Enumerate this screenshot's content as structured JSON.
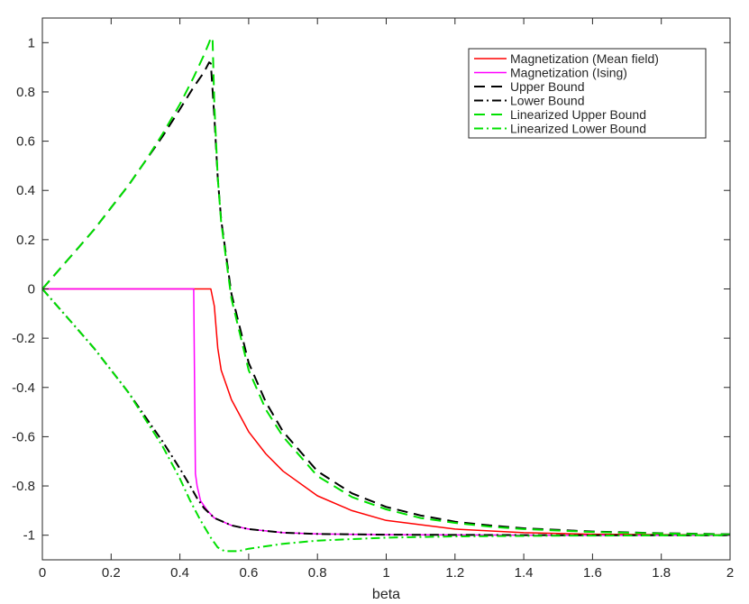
{
  "chart_data": {
    "type": "line",
    "xlabel": "beta",
    "ylabel": "",
    "xlim": [
      0,
      2
    ],
    "ylim": [
      -1.1,
      1.1
    ],
    "xticks": [
      "0",
      "0.2",
      "0.4",
      "0.6",
      "0.8",
      "1",
      "1.2",
      "1.4",
      "1.6",
      "1.8",
      "2"
    ],
    "yticks": [
      "-1",
      "-0.8",
      "-0.6",
      "-0.4",
      "-0.2",
      "0",
      "0.2",
      "0.4",
      "0.6",
      "0.8",
      "1"
    ],
    "grid": false,
    "legend_position": "top-right",
    "series": [
      {
        "name": "Magnetization (Mean field)",
        "color": "#ff0000",
        "dash": "solid",
        "points": [
          [
            0,
            0
          ],
          [
            0.49,
            0
          ],
          [
            0.5,
            -0.07
          ],
          [
            0.51,
            -0.24
          ],
          [
            0.52,
            -0.33
          ],
          [
            0.55,
            -0.45
          ],
          [
            0.6,
            -0.58
          ],
          [
            0.65,
            -0.67
          ],
          [
            0.7,
            -0.74
          ],
          [
            0.8,
            -0.84
          ],
          [
            0.9,
            -0.9
          ],
          [
            1.0,
            -0.94
          ],
          [
            1.2,
            -0.975
          ],
          [
            1.4,
            -0.99
          ],
          [
            1.6,
            -0.996
          ],
          [
            1.8,
            -0.998
          ],
          [
            2.0,
            -0.999
          ]
        ]
      },
      {
        "name": "Magnetization (Ising)",
        "color": "#ff00ff",
        "dash": "solid",
        "points": [
          [
            0,
            0
          ],
          [
            0.44,
            0
          ],
          [
            0.445,
            -0.75
          ],
          [
            0.45,
            -0.8
          ],
          [
            0.46,
            -0.86
          ],
          [
            0.48,
            -0.9
          ],
          [
            0.5,
            -0.93
          ],
          [
            0.55,
            -0.96
          ],
          [
            0.6,
            -0.975
          ],
          [
            0.7,
            -0.99
          ],
          [
            0.8,
            -0.995
          ],
          [
            1.0,
            -0.998
          ],
          [
            1.5,
            -1.0
          ],
          [
            2.0,
            -1.0
          ]
        ]
      },
      {
        "name": "Upper Bound",
        "color": "#000000",
        "dash": "long-dash",
        "points": [
          [
            0,
            0
          ],
          [
            0.05,
            0.08
          ],
          [
            0.1,
            0.16
          ],
          [
            0.15,
            0.24
          ],
          [
            0.2,
            0.33
          ],
          [
            0.25,
            0.42
          ],
          [
            0.3,
            0.52
          ],
          [
            0.35,
            0.62
          ],
          [
            0.4,
            0.73
          ],
          [
            0.44,
            0.82
          ],
          [
            0.47,
            0.88
          ],
          [
            0.485,
            0.92
          ],
          [
            0.49,
            0.915
          ],
          [
            0.5,
            0.7
          ],
          [
            0.51,
            0.45
          ],
          [
            0.52,
            0.28
          ],
          [
            0.55,
            -0.02
          ],
          [
            0.6,
            -0.3
          ],
          [
            0.65,
            -0.46
          ],
          [
            0.7,
            -0.58
          ],
          [
            0.8,
            -0.74
          ],
          [
            0.9,
            -0.83
          ],
          [
            1.0,
            -0.885
          ],
          [
            1.1,
            -0.92
          ],
          [
            1.2,
            -0.945
          ],
          [
            1.3,
            -0.96
          ],
          [
            1.4,
            -0.972
          ],
          [
            1.6,
            -0.985
          ],
          [
            1.8,
            -0.992
          ],
          [
            2.0,
            -0.996
          ]
        ]
      },
      {
        "name": "Lower Bound",
        "color": "#000000",
        "dash": "dash-dot",
        "points": [
          [
            0,
            0
          ],
          [
            0.05,
            -0.08
          ],
          [
            0.1,
            -0.16
          ],
          [
            0.15,
            -0.24
          ],
          [
            0.2,
            -0.33
          ],
          [
            0.25,
            -0.42
          ],
          [
            0.3,
            -0.52
          ],
          [
            0.35,
            -0.62
          ],
          [
            0.4,
            -0.73
          ],
          [
            0.43,
            -0.8
          ],
          [
            0.45,
            -0.85
          ],
          [
            0.47,
            -0.89
          ],
          [
            0.5,
            -0.93
          ],
          [
            0.55,
            -0.96
          ],
          [
            0.6,
            -0.975
          ],
          [
            0.7,
            -0.99
          ],
          [
            0.8,
            -0.995
          ],
          [
            1.0,
            -0.998
          ],
          [
            1.5,
            -1.0
          ],
          [
            2.0,
            -1.0
          ]
        ]
      },
      {
        "name": "Linearized Upper Bound",
        "color": "#00e000",
        "dash": "long-dash",
        "points": [
          [
            0,
            0
          ],
          [
            0.05,
            0.08
          ],
          [
            0.1,
            0.16
          ],
          [
            0.15,
            0.24
          ],
          [
            0.2,
            0.33
          ],
          [
            0.25,
            0.42
          ],
          [
            0.3,
            0.52
          ],
          [
            0.35,
            0.63
          ],
          [
            0.4,
            0.75
          ],
          [
            0.44,
            0.86
          ],
          [
            0.47,
            0.95
          ],
          [
            0.485,
            1.0
          ],
          [
            0.49,
            1.02
          ],
          [
            0.495,
            1.02
          ],
          [
            0.5,
            0.75
          ],
          [
            0.51,
            0.45
          ],
          [
            0.52,
            0.27
          ],
          [
            0.55,
            -0.04
          ],
          [
            0.6,
            -0.33
          ],
          [
            0.65,
            -0.49
          ],
          [
            0.7,
            -0.6
          ],
          [
            0.8,
            -0.76
          ],
          [
            0.9,
            -0.845
          ],
          [
            1.0,
            -0.895
          ],
          [
            1.1,
            -0.93
          ],
          [
            1.2,
            -0.95
          ],
          [
            1.3,
            -0.965
          ],
          [
            1.4,
            -0.975
          ],
          [
            1.6,
            -0.987
          ],
          [
            1.8,
            -0.993
          ],
          [
            2.0,
            -0.997
          ]
        ]
      },
      {
        "name": "Linearized Lower Bound",
        "color": "#00e000",
        "dash": "dash-dot",
        "points": [
          [
            0,
            0
          ],
          [
            0.05,
            -0.08
          ],
          [
            0.1,
            -0.16
          ],
          [
            0.15,
            -0.24
          ],
          [
            0.2,
            -0.33
          ],
          [
            0.25,
            -0.42
          ],
          [
            0.3,
            -0.53
          ],
          [
            0.35,
            -0.64
          ],
          [
            0.4,
            -0.77
          ],
          [
            0.43,
            -0.86
          ],
          [
            0.46,
            -0.94
          ],
          [
            0.49,
            -1.01
          ],
          [
            0.51,
            -1.05
          ],
          [
            0.53,
            -1.065
          ],
          [
            0.57,
            -1.065
          ],
          [
            0.6,
            -1.055
          ],
          [
            0.7,
            -1.035
          ],
          [
            0.8,
            -1.022
          ],
          [
            1.0,
            -1.01
          ],
          [
            1.2,
            -1.005
          ],
          [
            1.5,
            -1.002
          ],
          [
            2.0,
            -1.0
          ]
        ]
      }
    ]
  }
}
